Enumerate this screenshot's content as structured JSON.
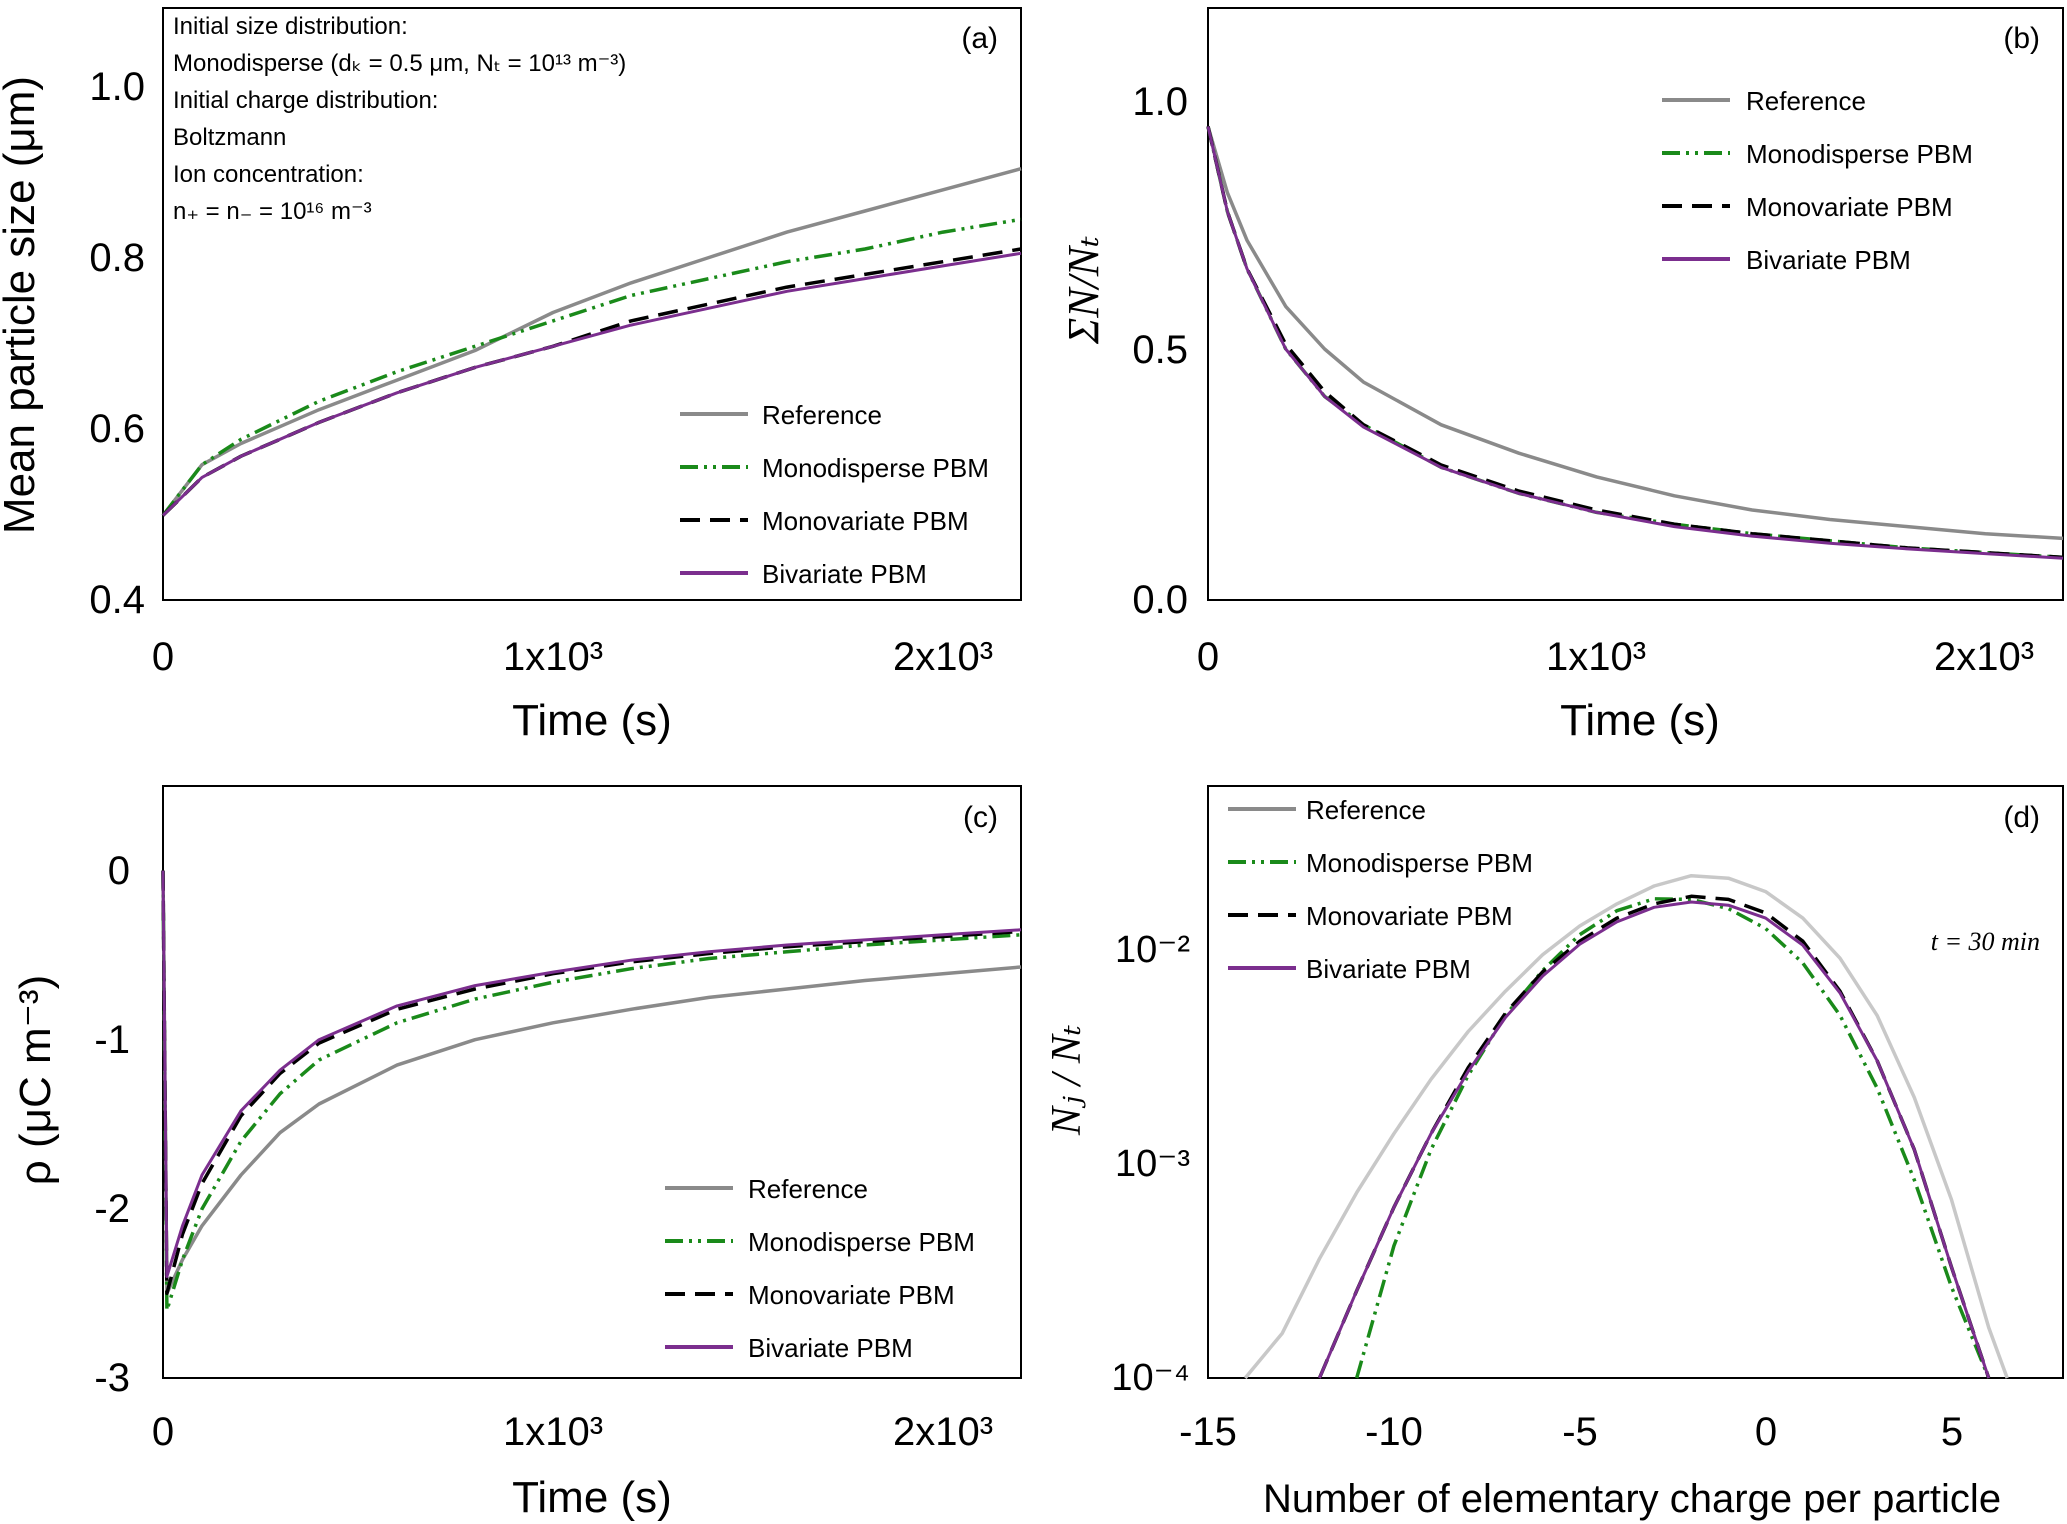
{
  "colors": {
    "reference": "#8a8a8a",
    "reference_d": "#c8c8c8",
    "monodisperse": "#1a8a1a",
    "monovariate": "#000000",
    "bivariate": "#7b2e8e"
  },
  "chart_data": [
    {
      "panel": "(a)",
      "type": "line",
      "xlabel": "Time (s)",
      "ylabel": "Mean particle size (μm)",
      "xlim": [
        0,
        2200
      ],
      "ylim": [
        0.4,
        1.1
      ],
      "xticks": [
        "0",
        "1x10³",
        "2x10³"
      ],
      "yticks": [
        "0.4",
        "0.6",
        "0.8",
        "1.0"
      ],
      "annotations": [
        "Initial size distribution:",
        "Monodisperse (dₖ = 0.5 μm, Nₜ = 10¹³ m⁻³)",
        "Initial charge distribution:",
        "Boltzmann",
        "Ion concentration:",
        "n₊ = n₋ = 10¹⁶ m⁻³"
      ],
      "legend_position": "bottom-right",
      "x": [
        0,
        100,
        200,
        400,
        600,
        800,
        1000,
        1200,
        1400,
        1600,
        1800,
        2000,
        2200
      ],
      "series": [
        {
          "name": "Reference",
          "values": [
            0.5,
            0.56,
            0.585,
            0.625,
            0.66,
            0.695,
            0.74,
            0.775,
            0.805,
            0.835,
            0.86,
            0.885,
            0.91
          ]
        },
        {
          "name": "Monodisperse PBM",
          "values": [
            0.5,
            0.56,
            0.59,
            0.635,
            0.67,
            0.7,
            0.73,
            0.76,
            0.78,
            0.8,
            0.815,
            0.835,
            0.85
          ]
        },
        {
          "name": "Monovariate PBM",
          "values": [
            0.5,
            0.545,
            0.57,
            0.61,
            0.645,
            0.675,
            0.7,
            0.73,
            0.75,
            0.77,
            0.785,
            0.8,
            0.815
          ]
        },
        {
          "name": "Bivariate PBM",
          "values": [
            0.5,
            0.545,
            0.57,
            0.61,
            0.645,
            0.675,
            0.7,
            0.725,
            0.745,
            0.765,
            0.78,
            0.795,
            0.81
          ]
        }
      ]
    },
    {
      "panel": "(b)",
      "type": "line",
      "xlabel": "Time (s)",
      "ylabel": "ΣN/Nₜ",
      "xlim": [
        0,
        2200
      ],
      "ylim": [
        0,
        1.25
      ],
      "xticks": [
        "0",
        "1x10³",
        "2x10³"
      ],
      "yticks": [
        "0.0",
        "0.5",
        "1.0"
      ],
      "legend_position": "top-right",
      "x": [
        0,
        50,
        100,
        200,
        300,
        400,
        600,
        800,
        1000,
        1200,
        1400,
        1600,
        1800,
        2000,
        2200
      ],
      "series": [
        {
          "name": "Reference",
          "values": [
            1.0,
            0.86,
            0.76,
            0.62,
            0.53,
            0.46,
            0.37,
            0.31,
            0.26,
            0.22,
            0.19,
            0.17,
            0.155,
            0.14,
            0.13
          ]
        },
        {
          "name": "Monodisperse PBM",
          "values": [
            1.0,
            0.82,
            0.7,
            0.53,
            0.43,
            0.37,
            0.28,
            0.225,
            0.185,
            0.16,
            0.14,
            0.125,
            0.11,
            0.1,
            0.09
          ]
        },
        {
          "name": "Monovariate PBM",
          "values": [
            1.0,
            0.82,
            0.7,
            0.54,
            0.44,
            0.37,
            0.285,
            0.23,
            0.19,
            0.16,
            0.14,
            0.125,
            0.11,
            0.1,
            0.09
          ]
        },
        {
          "name": "Bivariate PBM",
          "values": [
            1.0,
            0.82,
            0.7,
            0.53,
            0.43,
            0.365,
            0.28,
            0.225,
            0.185,
            0.155,
            0.135,
            0.12,
            0.108,
            0.098,
            0.088
          ]
        }
      ]
    },
    {
      "panel": "(c)",
      "type": "line",
      "xlabel": "Time (s)",
      "ylabel": "ρ (μC m⁻³)",
      "xlim": [
        0,
        2200
      ],
      "ylim": [
        -3,
        0.5
      ],
      "xticks": [
        "0",
        "1x10³",
        "2x10³"
      ],
      "yticks": [
        "-3",
        "-2",
        "-1",
        "0"
      ],
      "legend_position": "bottom-right",
      "x": [
        0,
        10,
        50,
        100,
        200,
        300,
        400,
        600,
        800,
        1000,
        1200,
        1400,
        1600,
        1800,
        2000,
        2200
      ],
      "series": [
        {
          "name": "Reference",
          "values": [
            0,
            -2.5,
            -2.3,
            -2.1,
            -1.8,
            -1.55,
            -1.38,
            -1.15,
            -1.0,
            -0.9,
            -0.82,
            -0.75,
            -0.7,
            -0.65,
            -0.61,
            -0.57
          ]
        },
        {
          "name": "Monodisperse PBM",
          "values": [
            0,
            -2.6,
            -2.3,
            -2.0,
            -1.6,
            -1.32,
            -1.12,
            -0.9,
            -0.76,
            -0.66,
            -0.58,
            -0.52,
            -0.48,
            -0.44,
            -0.41,
            -0.38
          ]
        },
        {
          "name": "Monovariate PBM",
          "values": [
            0,
            -2.5,
            -2.15,
            -1.85,
            -1.45,
            -1.2,
            -1.02,
            -0.82,
            -0.7,
            -0.61,
            -0.54,
            -0.49,
            -0.45,
            -0.42,
            -0.39,
            -0.36
          ]
        },
        {
          "name": "Bivariate PBM",
          "values": [
            0,
            -2.4,
            -2.1,
            -1.8,
            -1.42,
            -1.18,
            -1.0,
            -0.8,
            -0.68,
            -0.6,
            -0.53,
            -0.48,
            -0.44,
            -0.41,
            -0.38,
            -0.35
          ]
        }
      ]
    },
    {
      "panel": "(d)",
      "type": "line",
      "xlabel": "Number of elementary charge per particle",
      "ylabel": "Nⱼ / Nₜ",
      "xlim": [
        -15,
        8
      ],
      "ylim": [
        0.0001,
        0.05
      ],
      "yscale": "log",
      "xticks": [
        "-15",
        "-10",
        "-5",
        "0",
        "5"
      ],
      "yticks": [
        "10⁻⁴",
        "10⁻³",
        "10⁻²"
      ],
      "annotations": [
        "t = 30 min"
      ],
      "legend_position": "top-left",
      "x": [
        -14,
        -13,
        -12,
        -11,
        -10,
        -9,
        -8,
        -7,
        -6,
        -5,
        -4,
        -3,
        -2,
        -1,
        0,
        1,
        2,
        3,
        4,
        5,
        6,
        6.5
      ],
      "series": [
        {
          "name": "Reference",
          "values": [
            7e-05,
            0.00016,
            0.00035,
            0.0007,
            0.0013,
            0.0023,
            0.0038,
            0.0058,
            0.0085,
            0.0115,
            0.0145,
            0.0175,
            0.0195,
            0.019,
            0.0165,
            0.0125,
            0.0082,
            0.0045,
            0.0019,
            0.00065,
            0.00017,
            8e-05
          ]
        },
        {
          "name": "Monodisperse PBM",
          "values": [
            null,
            null,
            null,
            0.0001,
            0.0004,
            0.0011,
            0.0024,
            0.0045,
            0.0072,
            0.0105,
            0.0135,
            0.0153,
            0.0152,
            0.0138,
            0.0112,
            0.0078,
            0.0045,
            0.0021,
            0.0008,
            0.00026,
            8e-05,
            null
          ]
        },
        {
          "name": "Monovariate PBM",
          "values": [
            null,
            null,
            9e-05,
            0.00025,
            0.0006,
            0.0013,
            0.0026,
            0.0046,
            0.0071,
            0.0098,
            0.0125,
            0.0145,
            0.0157,
            0.0152,
            0.0132,
            0.0098,
            0.0058,
            0.0028,
            0.0011,
            0.00032,
            9e-05,
            null
          ]
        },
        {
          "name": "Bivariate PBM",
          "values": [
            null,
            null,
            9e-05,
            0.00025,
            0.0006,
            0.0013,
            0.0025,
            0.0044,
            0.0068,
            0.0095,
            0.012,
            0.014,
            0.0148,
            0.0143,
            0.0125,
            0.0094,
            0.0057,
            0.0028,
            0.0011,
            0.00032,
            9e-05,
            null
          ]
        }
      ]
    }
  ]
}
